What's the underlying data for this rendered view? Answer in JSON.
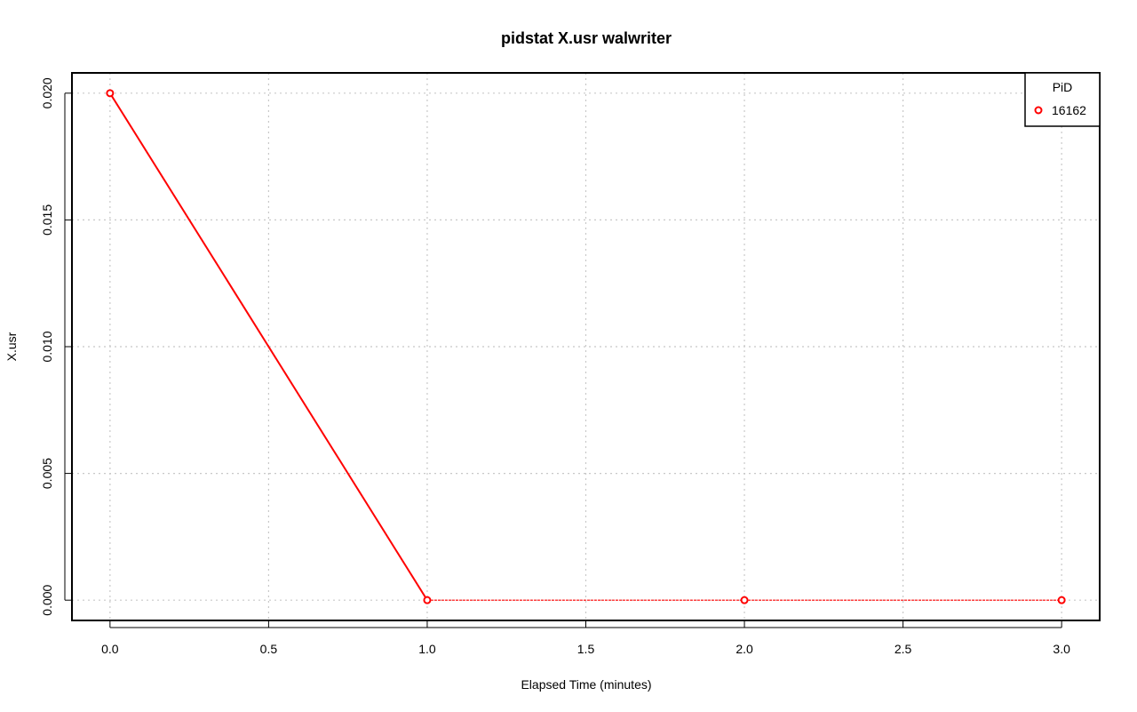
{
  "chart_data": {
    "type": "line",
    "title": "pidstat X.usr walwriter",
    "xlabel": "Elapsed Time (minutes)",
    "ylabel": "X.usr",
    "xlim": [
      -0.12,
      3.12
    ],
    "ylim": [
      -0.0008,
      0.0208
    ],
    "x_ticks": [
      0.0,
      0.5,
      1.0,
      1.5,
      2.0,
      2.5,
      3.0
    ],
    "x_tick_labels": [
      "0.0",
      "0.5",
      "1.0",
      "1.5",
      "2.0",
      "2.5",
      "3.0"
    ],
    "y_ticks": [
      0.0,
      0.005,
      0.01,
      0.015,
      0.02
    ],
    "y_tick_labels": [
      "0.000",
      "0.005",
      "0.010",
      "0.015",
      "0.020"
    ],
    "grid": true,
    "legend": {
      "title": "PiD",
      "position": "top-right"
    },
    "series": [
      {
        "name": "16162",
        "color": "#ff0000",
        "x": [
          0,
          1,
          2,
          3
        ],
        "y": [
          0.02,
          0.0,
          0.0,
          0.0
        ]
      }
    ]
  }
}
